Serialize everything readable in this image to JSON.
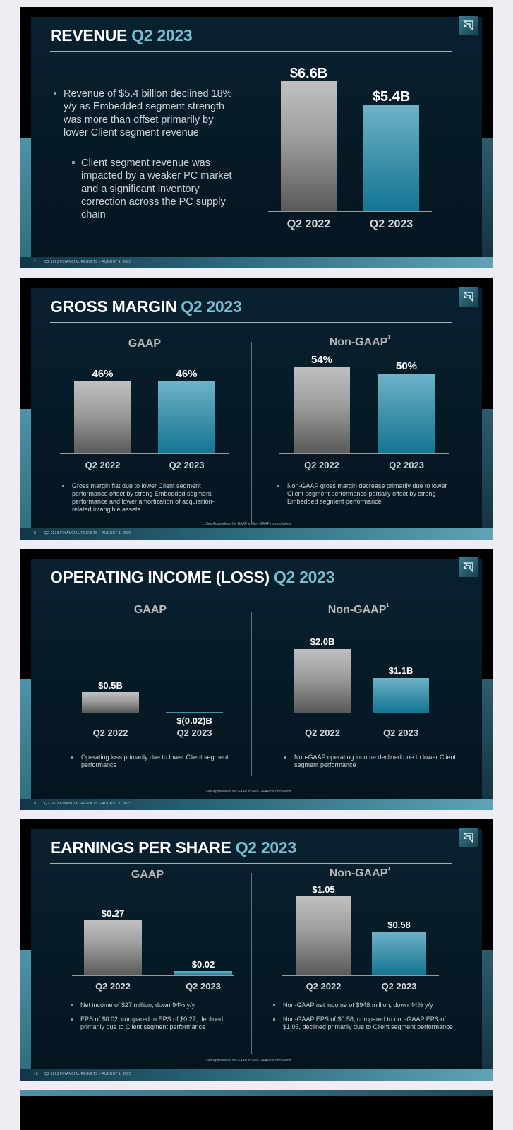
{
  "footer_suffix": "Q2 2023 FINANCIAL RESULTS – AUGUST 1, 2023",
  "slides": {
    "revenue": {
      "page": "7",
      "title": "REVENUE ",
      "title_hl": "Q2 2023",
      "bullets": [
        "Revenue of $5.4 billion declined 18% y/y as Embedded segment strength was more than offset primarily by lower Client segment revenue",
        "Client segment revenue was impacted by a weaker PC market and a significant inventory correction across the PC supply chain"
      ],
      "chart_data": {
        "type": "bar",
        "categories": [
          "Q2 2022",
          "Q2 2023"
        ],
        "values": [
          6.6,
          5.4
        ],
        "value_labels": [
          "$6.6B",
          "$5.4B"
        ],
        "ylim": [
          0,
          6.6
        ],
        "colors": [
          "#9c9c9c",
          "#3c8fa8"
        ]
      }
    },
    "gross_margin": {
      "page": "8",
      "title": "GROSS MARGIN ",
      "title_hl": "Q2 2023",
      "gaap_heading": "GAAP",
      "nongaap_heading": "Non-GAAP",
      "nongaap_sup": "1",
      "gaap_bullet": "Gross margin flat due to lower Client segment performance offset by strong Embedded segment performance and lower amortization of acquisition-related intangible assets",
      "nongaap_bullet": "Non-GAAP gross margin decrease primarily due to lower Client segment performance partially offset by strong Embedded segment performance",
      "footnote": "1. See Appendices for GAAP to Non-GAAP reconciliation",
      "chart_data": [
        {
          "type": "bar",
          "categories": [
            "Q2 2022",
            "Q2 2023"
          ],
          "values": [
            46,
            46
          ],
          "value_labels": [
            "46%",
            "46%"
          ]
        },
        {
          "type": "bar",
          "categories": [
            "Q2 2022",
            "Q2 2023"
          ],
          "values": [
            54,
            50
          ],
          "value_labels": [
            "54%",
            "50%"
          ]
        }
      ]
    },
    "operating_income": {
      "page": "9",
      "title": "OPERATING INCOME (LOSS) ",
      "title_hl": "Q2 2023",
      "gaap_heading": "GAAP",
      "nongaap_heading": "Non-GAAP",
      "nongaap_sup": "1",
      "gaap_bullet": "Operating loss primarily due to lower Client segment performance",
      "nongaap_bullet": "Non-GAAP operating income declined due to lower Client segment performance",
      "footnote": "1. See Appendices for GAAP to Non-GAAP reconciliation",
      "chart_data": [
        {
          "type": "bar",
          "categories": [
            "Q2 2022",
            "Q2 2023"
          ],
          "values": [
            0.5,
            -0.02
          ],
          "value_labels": [
            "$0.5B",
            "$(0.02)B"
          ]
        },
        {
          "type": "bar",
          "categories": [
            "Q2 2022",
            "Q2 2023"
          ],
          "values": [
            2.0,
            1.1
          ],
          "value_labels": [
            "$2.0B",
            "$1.1B"
          ]
        }
      ]
    },
    "eps": {
      "page": "10",
      "title": "EARNINGS PER SHARE ",
      "title_hl": "Q2 2023",
      "gaap_heading": "GAAP",
      "nongaap_heading": "Non-GAAP",
      "nongaap_sup": "1",
      "gaap_bullets": [
        "Net income of $27 million, down 94% y/y",
        "EPS of $0.02, compared to EPS of $0.27, declined primarily due to Client segment performance"
      ],
      "nongaap_bullets": [
        "Non-GAAP net income of $948 million, down 44% y/y",
        "Non-GAAP EPS of $0.58, compared to non-GAAP EPS of $1.05, declined primarily due to Client segment performance"
      ],
      "footnote": "1. See Appendices for GAAP to Non-GAAP reconciliation",
      "chart_data": [
        {
          "type": "bar",
          "categories": [
            "Q2 2022",
            "Q2 2023"
          ],
          "values": [
            0.27,
            0.02
          ],
          "value_labels": [
            "$0.27",
            "$0.02"
          ]
        },
        {
          "type": "bar",
          "categories": [
            "Q2 2022",
            "Q2 2023"
          ],
          "values": [
            1.05,
            0.58
          ],
          "value_labels": [
            "$1.05",
            "$0.58"
          ]
        }
      ]
    }
  }
}
